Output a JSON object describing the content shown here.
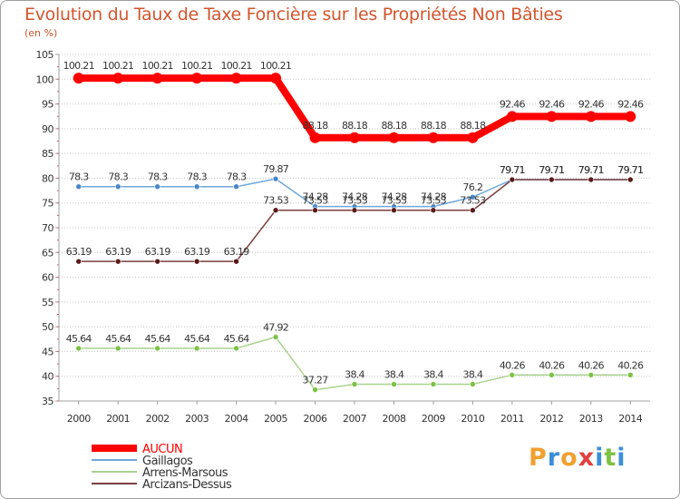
{
  "colors": {
    "title": "#d2552d",
    "axis": "#a0a0a0",
    "grid": "#c8c8c8",
    "text": "#333333"
  },
  "chart_data": {
    "type": "line",
    "title": "Evolution du Taux de Taxe Foncière sur les Propriétés Non Bâties",
    "subtitle": "(en %)",
    "xlabel": "",
    "ylabel": "",
    "x": [
      "2000",
      "2001",
      "2002",
      "2003",
      "2004",
      "2005",
      "2006",
      "2007",
      "2008",
      "2009",
      "2010",
      "2011",
      "2012",
      "2013",
      "2014"
    ],
    "ylim": [
      35,
      105
    ],
    "yticks": [
      35,
      40,
      45,
      50,
      55,
      60,
      65,
      70,
      75,
      80,
      85,
      90,
      95,
      100,
      105
    ],
    "grid": "horizontal",
    "legend_position": "bottom-left",
    "series": [
      {
        "name": "AUCUN",
        "color": "#ff0000",
        "point_color": "#ff0000",
        "width": 8,
        "labels": [
          "100.21",
          "100.21",
          "100.21",
          "100.21",
          "100.21",
          "100.21",
          "88.18",
          "88.18",
          "88.18",
          "88.18",
          "88.18",
          "92.46",
          "92.46",
          "92.46",
          "92.46"
        ],
        "values": [
          100.21,
          100.21,
          100.21,
          100.21,
          100.21,
          100.21,
          88.18,
          88.18,
          88.18,
          88.18,
          88.18,
          92.46,
          92.46,
          92.46,
          92.46
        ]
      },
      {
        "name": "Gaillagos",
        "color": "#6fa8dc",
        "point_color": "#4a86c5",
        "width": 1.5,
        "labels": [
          "78.3",
          "78.3",
          "78.3",
          "78.3",
          "78.3",
          "79.87",
          "74.28",
          "74.28",
          "74.28",
          "74.28",
          "76.2",
          "79.71",
          "79.71",
          "79.71",
          "79.71"
        ],
        "values": [
          78.3,
          78.3,
          78.3,
          78.3,
          78.3,
          79.87,
          74.28,
          74.28,
          74.28,
          74.28,
          76.2,
          79.71,
          79.71,
          79.71,
          79.71
        ]
      },
      {
        "name": "Arrens-Marsous",
        "color": "#a9d18e",
        "point_color": "#7cc242",
        "width": 1.5,
        "labels": [
          "45.64",
          "45.64",
          "45.64",
          "45.64",
          "45.64",
          "47.92",
          "37.27",
          "38.4",
          "38.4",
          "38.4",
          "38.4",
          "40.26",
          "40.26",
          "40.26",
          "40.26"
        ],
        "values": [
          45.64,
          45.64,
          45.64,
          45.64,
          45.64,
          47.92,
          37.27,
          38.4,
          38.4,
          38.4,
          38.4,
          40.26,
          40.26,
          40.26,
          40.26
        ]
      },
      {
        "name": "Arcizans-Dessus",
        "color": "#7b3f3f",
        "point_color": "#5a1a1a",
        "width": 1.5,
        "labels": [
          "63.19",
          "63.19",
          "63.19",
          "63.19",
          "63.19",
          "73.53",
          "73.53",
          "73.53",
          "73.53",
          "73.53",
          "73.53",
          "79.71",
          "79.71",
          "79.71",
          "79.71"
        ],
        "values": [
          63.19,
          63.19,
          63.19,
          63.19,
          63.19,
          73.53,
          73.53,
          73.53,
          73.53,
          73.53,
          73.53,
          79.71,
          79.71,
          79.71,
          79.71
        ]
      }
    ]
  },
  "logo": {
    "letters": [
      {
        "ch": "P",
        "color": "#f0a030"
      },
      {
        "ch": "r",
        "color": "#3a8fd8"
      },
      {
        "ch": "o",
        "color": "#f0a030"
      },
      {
        "ch": "x",
        "color": "#e04040"
      },
      {
        "ch": "i",
        "color": "#3a8fd8"
      },
      {
        "ch": "t",
        "color": "#7cc242"
      },
      {
        "ch": "i",
        "color": "#3a8fd8"
      }
    ]
  }
}
